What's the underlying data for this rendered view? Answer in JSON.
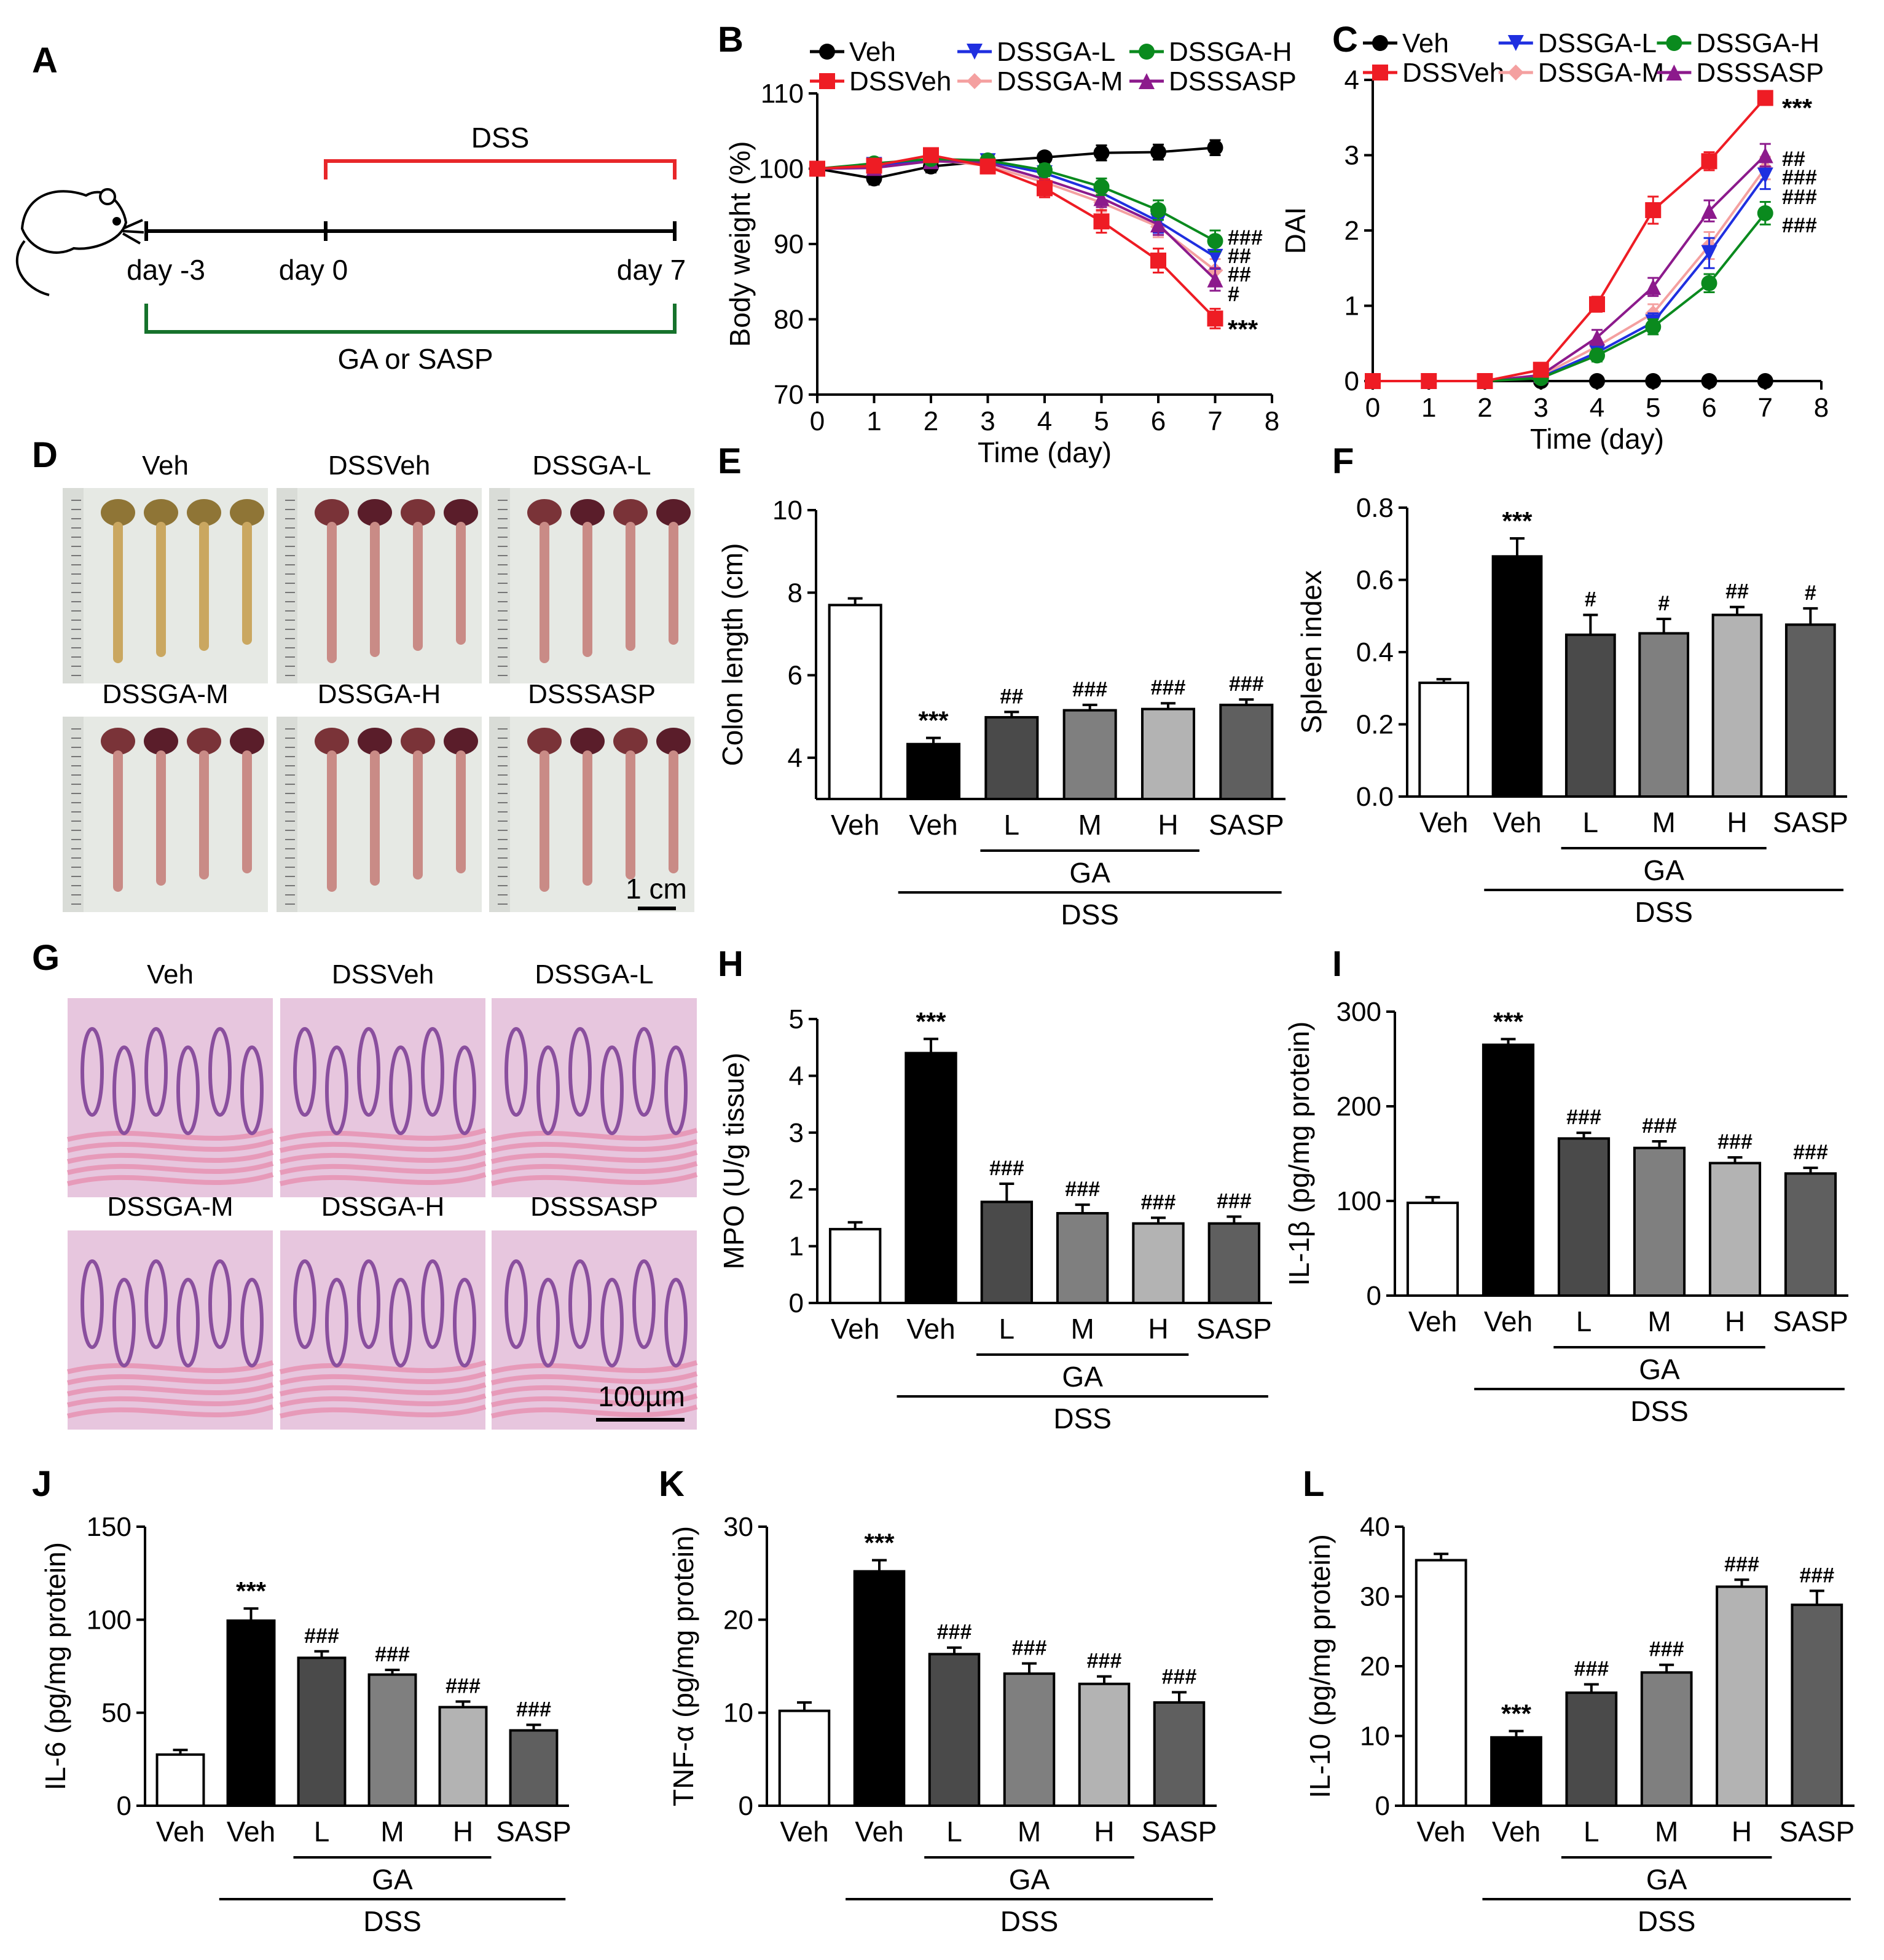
{
  "panel_letters": [
    "A",
    "B",
    "C",
    "D",
    "E",
    "F",
    "G",
    "H",
    "I",
    "J",
    "K",
    "L"
  ],
  "panelA": {
    "dss_label": "DSS",
    "treatment_label": "GA or SASP",
    "day_labels": [
      "day -3",
      "day 0",
      "day 7"
    ]
  },
  "photos": {
    "groups": [
      "Veh",
      "DSSVeh",
      "DSSGA-L",
      "DSSGA-M",
      "DSSGA-H",
      "DSSSASP"
    ],
    "colon_scale": "1 cm",
    "histo_scale": "100µm"
  },
  "colors": {
    "Veh": "#000000",
    "DSSVeh": "#ee1c24",
    "DSSGA-L": "#1f2fe0",
    "DSSGA-M": "#f4a0a0",
    "DSSGA-H": "#0a8a1e",
    "DSSSASP": "#8c1a8c",
    "bars": [
      "#ffffff",
      "#000000",
      "#4a4a4a",
      "#7f7f7f",
      "#b3b3b3",
      "#5f5f5f"
    ]
  },
  "bar_axis": {
    "categories": [
      "Veh",
      "Veh",
      "L",
      "M",
      "H",
      "SASP"
    ],
    "ga_label": "GA",
    "dss_label": "DSS"
  },
  "chart_data": [
    {
      "id": "B",
      "type": "line",
      "xlabel": "Time (day)",
      "ylabel": "Body weight (%)",
      "xlim": [
        0,
        8
      ],
      "ylim": [
        70,
        110
      ],
      "xticks": [
        "0",
        "1",
        "2",
        "3",
        "4",
        "5",
        "6",
        "7",
        "8"
      ],
      "yticks": [
        "70",
        "80",
        "90",
        "100",
        "110"
      ],
      "x": [
        0,
        1,
        2,
        3,
        4,
        5,
        6,
        7
      ],
      "series": [
        {
          "name": "Veh",
          "values": [
            100,
            98.7,
            100.3,
            101,
            101.5,
            102.1,
            102.2,
            102.8
          ],
          "err": [
            0.6,
            0.8,
            0.8,
            0.8,
            0.6,
            1,
            1,
            1
          ]
        },
        {
          "name": "DSSVeh",
          "values": [
            100,
            100.4,
            101.8,
            100.3,
            97.4,
            93,
            87.8,
            80.1
          ],
          "err": [
            0.5,
            0.6,
            0.6,
            0.8,
            1.2,
            1.5,
            1.6,
            1.3
          ]
        },
        {
          "name": "DSSGA-L",
          "values": [
            100,
            100.5,
            101,
            101,
            99.4,
            96.8,
            93,
            88.3
          ],
          "err": [
            0.5,
            0.6,
            0.6,
            0.7,
            0.9,
            1.3,
            1.5,
            1.6
          ]
        },
        {
          "name": "DSSGA-M",
          "values": [
            100,
            100.2,
            101.2,
            100.4,
            98.2,
            95.5,
            92.3,
            86.5
          ],
          "err": [
            0.5,
            0.6,
            0.6,
            0.7,
            1,
            1.2,
            1.4,
            1.5
          ]
        },
        {
          "name": "DSSGA-H",
          "values": [
            100,
            100.7,
            101.3,
            101.1,
            99.8,
            97.6,
            94.5,
            90.4
          ],
          "err": [
            0.5,
            0.6,
            0.6,
            0.7,
            0.8,
            1.1,
            1.3,
            1.4
          ]
        },
        {
          "name": "DSSSASP",
          "values": [
            100,
            100.1,
            101,
            100.8,
            98.6,
            96.1,
            92.6,
            85.3
          ],
          "err": [
            0.5,
            0.6,
            0.6,
            0.7,
            0.9,
            1.2,
            1.4,
            1.5
          ]
        }
      ],
      "annotations": [
        {
          "text": "###",
          "series": "DSSGA-H"
        },
        {
          "text": "##",
          "series": "DSSGA-L"
        },
        {
          "text": "##",
          "series": "DSSGA-M"
        },
        {
          "text": "#",
          "series": "DSSSASP"
        },
        {
          "text": "***",
          "series": "DSSVeh"
        }
      ]
    },
    {
      "id": "C",
      "type": "line",
      "xlabel": "Time (day)",
      "ylabel": "DAI",
      "xlim": [
        0,
        8
      ],
      "ylim": [
        0,
        4
      ],
      "xticks": [
        "0",
        "1",
        "2",
        "3",
        "4",
        "5",
        "6",
        "7",
        "8"
      ],
      "yticks": [
        "0",
        "1",
        "2",
        "3",
        "4"
      ],
      "x": [
        0,
        1,
        2,
        3,
        4,
        5,
        6,
        7
      ],
      "series": [
        {
          "name": "Veh",
          "values": [
            0,
            0,
            0,
            0,
            0,
            0,
            0,
            0
          ],
          "err": [
            0,
            0,
            0,
            0,
            0,
            0,
            0,
            0
          ]
        },
        {
          "name": "DSSVeh",
          "values": [
            0,
            0,
            0,
            0.15,
            1.02,
            2.27,
            2.92,
            3.76
          ],
          "err": [
            0,
            0,
            0,
            0.05,
            0.1,
            0.18,
            0.12,
            0.05
          ]
        },
        {
          "name": "DSSGA-L",
          "values": [
            0,
            0,
            0,
            0.05,
            0.38,
            0.78,
            1.7,
            2.73
          ],
          "err": [
            0,
            0,
            0,
            0.03,
            0.08,
            0.12,
            0.2,
            0.18
          ]
        },
        {
          "name": "DSSGA-M",
          "values": [
            0,
            0,
            0,
            0.07,
            0.46,
            0.9,
            1.8,
            2.83
          ],
          "err": [
            0,
            0,
            0,
            0.03,
            0.08,
            0.12,
            0.18,
            0.15
          ]
        },
        {
          "name": "DSSGA-H",
          "values": [
            0,
            0,
            0,
            0.04,
            0.34,
            0.72,
            1.3,
            2.23
          ],
          "err": [
            0,
            0,
            0,
            0.03,
            0.08,
            0.1,
            0.12,
            0.15
          ]
        },
        {
          "name": "DSSSASP",
          "values": [
            0,
            0,
            0,
            0.08,
            0.58,
            1.25,
            2.26,
            3.0
          ],
          "err": [
            0,
            0,
            0,
            0.03,
            0.1,
            0.12,
            0.14,
            0.15
          ]
        }
      ],
      "annotations": [
        {
          "text": "***",
          "series": "DSSVeh"
        },
        {
          "text": "##",
          "series": "DSSSASP"
        },
        {
          "text": "###",
          "series": "DSSGA-M"
        },
        {
          "text": "###",
          "series": "DSSGA-L"
        },
        {
          "text": "###",
          "series": "DSSGA-H"
        }
      ]
    },
    {
      "id": "E",
      "type": "bar",
      "ylabel": "Colon length (cm)",
      "ylim": [
        3,
        10
      ],
      "yticks": [
        "4",
        "6",
        "8",
        "10"
      ],
      "values": [
        7.7,
        4.33,
        4.98,
        5.15,
        5.18,
        5.28
      ],
      "err": [
        0.16,
        0.15,
        0.13,
        0.13,
        0.14,
        0.13
      ],
      "annotations": [
        "",
        "***",
        "##",
        "###",
        "###",
        "###"
      ]
    },
    {
      "id": "F",
      "type": "bar",
      "ylabel": "Spleen index",
      "ylim": [
        0,
        0.8
      ],
      "yticks": [
        "0.0",
        "0.2",
        "0.4",
        "0.6",
        "0.8"
      ],
      "values": [
        0.315,
        0.665,
        0.448,
        0.452,
        0.503,
        0.476
      ],
      "err": [
        0.01,
        0.05,
        0.055,
        0.04,
        0.022,
        0.045
      ],
      "annotations": [
        "",
        "***",
        "#",
        "#",
        "##",
        "#"
      ]
    },
    {
      "id": "H",
      "type": "bar",
      "ylabel": "MPO (U/g tissue)",
      "ylim": [
        0,
        5
      ],
      "yticks": [
        "0",
        "1",
        "2",
        "3",
        "4",
        "5"
      ],
      "values": [
        1.3,
        4.4,
        1.78,
        1.58,
        1.4,
        1.4
      ],
      "err": [
        0.12,
        0.25,
        0.32,
        0.15,
        0.1,
        0.12
      ],
      "annotations": [
        "",
        "***",
        "###",
        "###",
        "###",
        "###"
      ]
    },
    {
      "id": "I",
      "type": "bar",
      "ylabel": "IL-1β  (pg/mg protein)",
      "ylim": [
        0,
        300
      ],
      "yticks": [
        "0",
        "100",
        "200",
        "300"
      ],
      "values": [
        98,
        265,
        166,
        156,
        140,
        129
      ],
      "err": [
        6,
        6,
        6,
        7,
        6,
        6
      ],
      "annotations": [
        "",
        "***",
        "###",
        "###",
        "###",
        "###"
      ]
    },
    {
      "id": "J",
      "type": "bar",
      "ylabel": "IL-6  (pg/mg protein)",
      "ylim": [
        0,
        150
      ],
      "yticks": [
        "0",
        "50",
        "100",
        "150"
      ],
      "values": [
        27.5,
        99.5,
        79.5,
        70.5,
        53,
        40.5
      ],
      "err": [
        2.5,
        6.5,
        3.5,
        2.5,
        3,
        3
      ],
      "annotations": [
        "",
        "***",
        "###",
        "###",
        "###",
        "###"
      ]
    },
    {
      "id": "K",
      "type": "bar",
      "ylabel": "TNF-α  (pg/mg protein)",
      "ylim": [
        0,
        30
      ],
      "yticks": [
        "0",
        "10",
        "20",
        "30"
      ],
      "values": [
        10.2,
        25.2,
        16.3,
        14.2,
        13.1,
        11.1
      ],
      "err": [
        0.9,
        1.2,
        0.7,
        1.1,
        0.8,
        1.1
      ],
      "annotations": [
        "",
        "***",
        "###",
        "###",
        "###",
        "###"
      ]
    },
    {
      "id": "L",
      "type": "bar",
      "ylabel": "IL-10 (pg/mg protein)",
      "ylim": [
        0,
        40
      ],
      "yticks": [
        "0",
        "10",
        "20",
        "30",
        "40"
      ],
      "values": [
        35.2,
        9.8,
        16.2,
        19.1,
        31.4,
        28.8
      ],
      "err": [
        0.9,
        0.9,
        1.2,
        1.1,
        1,
        2
      ],
      "annotations": [
        "",
        "***",
        "###",
        "###",
        "###",
        "###"
      ]
    }
  ]
}
